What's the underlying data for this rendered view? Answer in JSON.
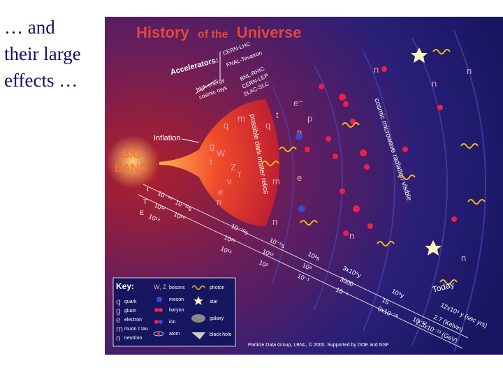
{
  "slide_text": [
    "… and",
    "their large",
    "effects …"
  ],
  "figure": {
    "title_a": "History",
    "title_b": "of the",
    "title_c": "Universe",
    "big_bang": [
      "BIG",
      "BANG"
    ],
    "inflation": "Inflation",
    "accelerators": "Accelerators:",
    "accel_list": [
      "CERN-LHC",
      "FNAL-Tevatron",
      "BNL-RHIC",
      "CERN-LEP",
      "SLAC-SLC"
    ],
    "cosmic_rays": [
      "high-energy",
      "cosmic rays"
    ],
    "dark_matter": [
      "possible dark matter relics"
    ],
    "cmb": "cosmic microwave radiation visible",
    "today": "Today",
    "today_vals": [
      "12x10⁹ y (sec yrs)",
      "2.7 (Kelvin)",
      "2.3x10⁻¹³ (GeV)"
    ],
    "scale_labels": [
      "t",
      "T",
      "E"
    ],
    "time_vals": [
      "10⁻⁴⁴",
      "10⁻³²s",
      "10⁻¹⁰s",
      "10⁻⁵s",
      "10²s",
      "3x10⁵y",
      "10⁹y"
    ],
    "temp_vals": [
      "10³²",
      "10²⁹",
      "10¹⁵",
      "10¹²",
      "10⁹",
      "3000",
      "15"
    ],
    "energy_vals": [
      "10¹⁹",
      "10¹⁵",
      "10²",
      "10⁻¹",
      "10⁻⁴",
      "0x10⁻¹⁰",
      "10⁻¹²"
    ],
    "particle_syms": [
      "q",
      "g",
      "t",
      "e",
      "n",
      "m",
      "W",
      "Z",
      "τ",
      "ν",
      "e⁻",
      "p"
    ],
    "key": {
      "title": "Key:",
      "left": [
        {
          "sym": "q",
          "label": "quark"
        },
        {
          "sym": "g",
          "label": "gluon"
        },
        {
          "sym": "e",
          "label": "electron"
        },
        {
          "sym": "m",
          "label": "muon τ tau"
        },
        {
          "sym": "n",
          "label": "neutrino"
        }
      ],
      "mid": [
        {
          "sym": "W, Z",
          "label": "bosons"
        },
        {
          "sym": "",
          "label": "meson"
        },
        {
          "sym": "",
          "label": "baryon"
        },
        {
          "sym": "",
          "label": "ion"
        },
        {
          "sym": "",
          "label": "atom"
        }
      ],
      "right": [
        {
          "label": "photon"
        },
        {
          "label": "star"
        },
        {
          "label": "galaxy"
        },
        {
          "label": "black hole"
        }
      ]
    },
    "credit": "Particle Data Group, LBNL, © 2000.   Supported by DOE and NSF"
  },
  "colors": {
    "slide_text": "#1a0a66",
    "bg_inner": "#8a1a1a",
    "bg_outer": "#1a1a6e",
    "title": "#e0483a",
    "bang": "#ff6a2a",
    "particle": "#f21d4b",
    "photon": "#f2b81a"
  }
}
